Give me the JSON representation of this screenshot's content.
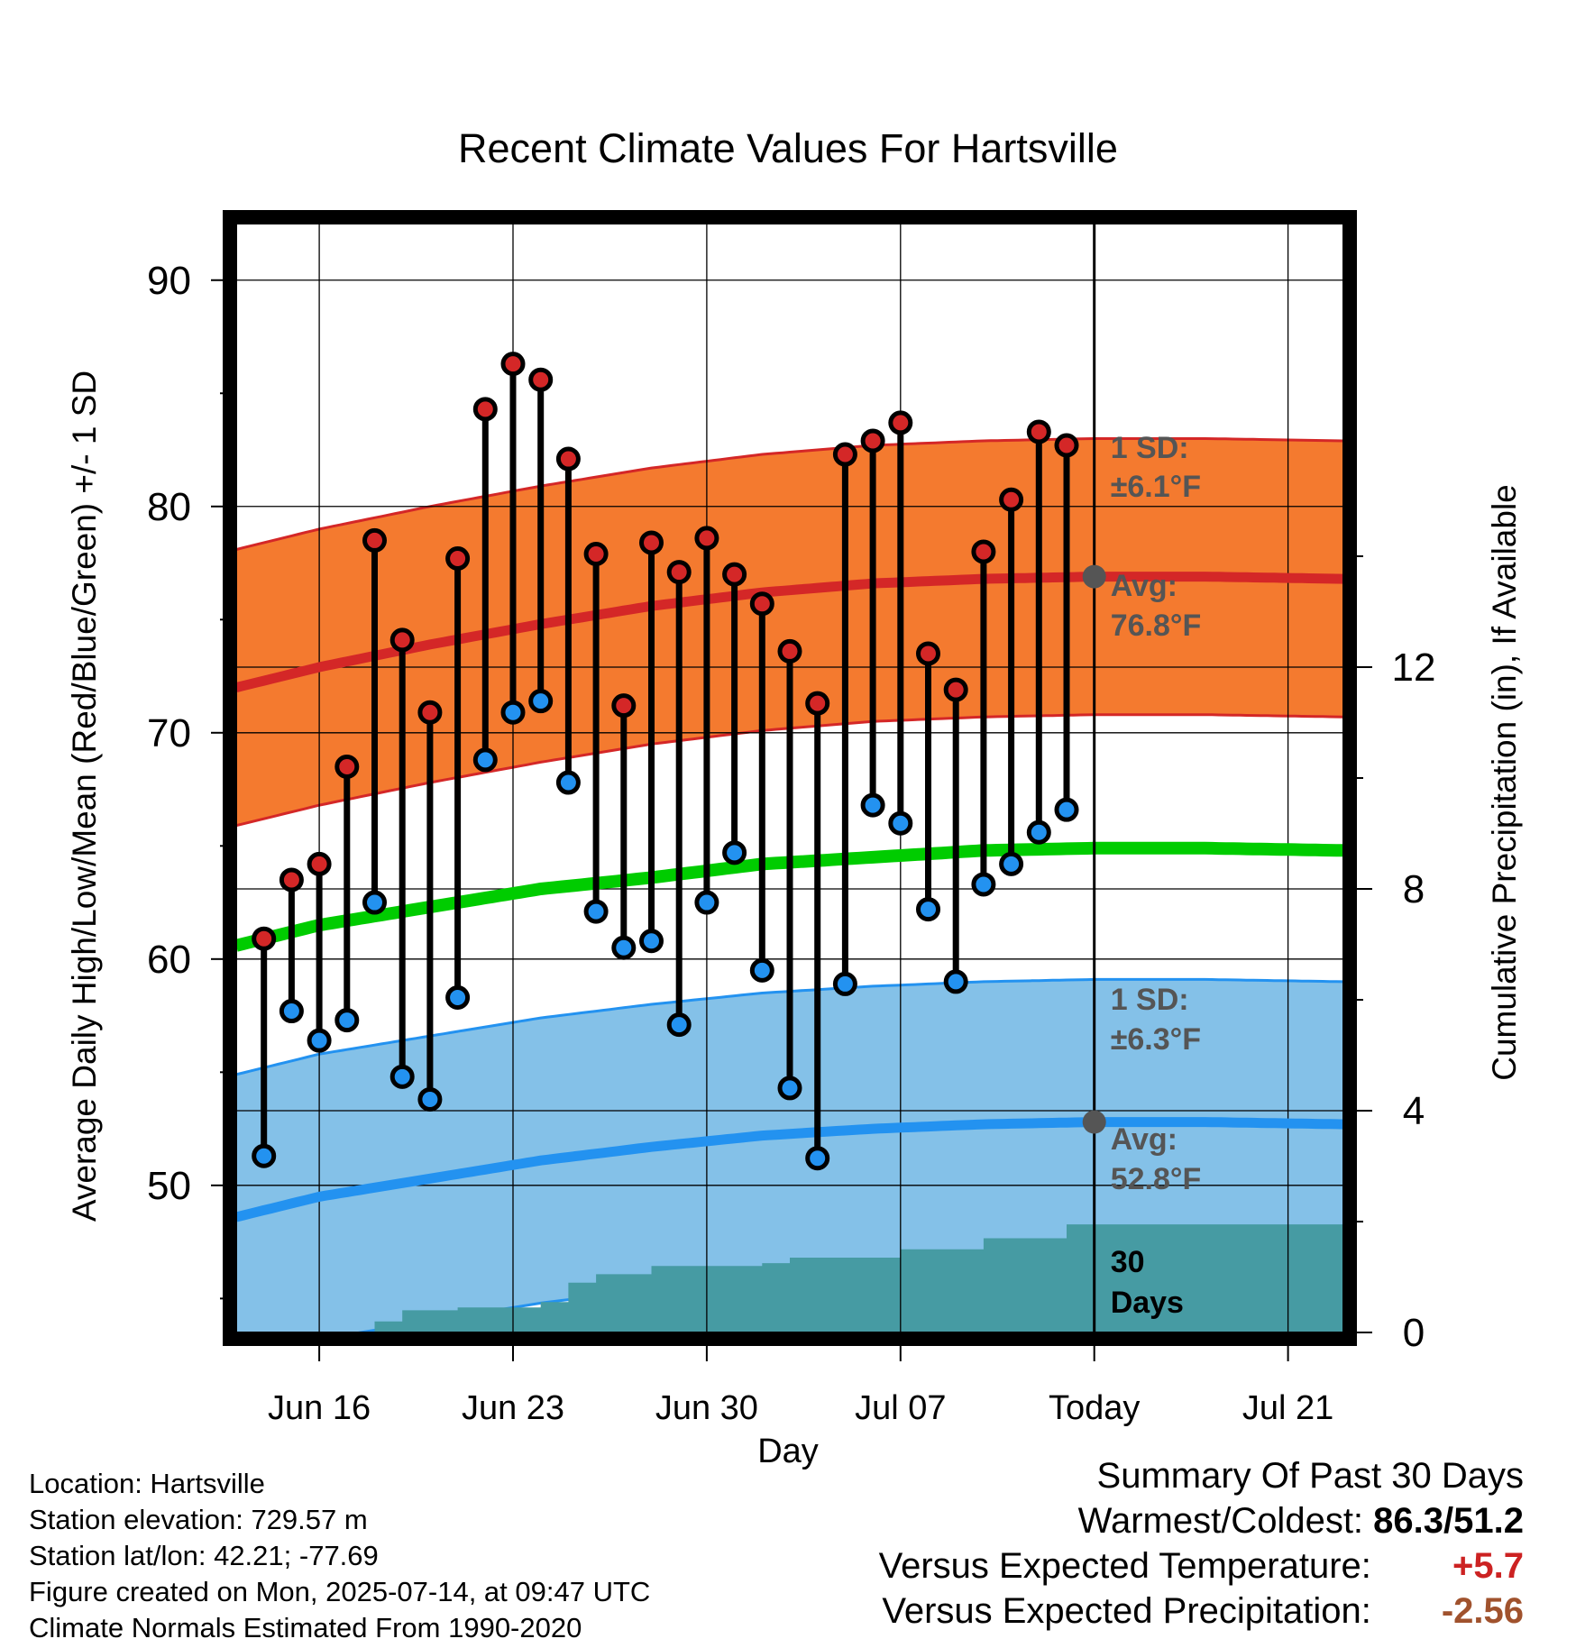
{
  "chart_data": {
    "type": "line",
    "title": "Recent Climate Values For Hartsville",
    "xlabel": "Day",
    "ylabel": "Average Daily High/Low/Mean (Red/Blue/Green) +/- 1 SD",
    "y2label": "Cumulative Precipitation (in), If Available",
    "x_ticks": [
      "Jun 16",
      "Jun 23",
      "Jun 30",
      "Jul 07",
      "Today",
      "Jul 21"
    ],
    "x_tick_dates": [
      "2025-06-16",
      "2025-06-23",
      "2025-06-30",
      "2025-07-07",
      "2025-07-14",
      "2025-07-21"
    ],
    "xlim": [
      "2025-06-13",
      "2025-07-23"
    ],
    "y_ticks": [
      50,
      60,
      70,
      80,
      90
    ],
    "ylim": [
      43.5,
      92.5
    ],
    "y2_ticks": [
      0,
      4,
      8,
      12
    ],
    "y2lim": [
      0,
      20
    ],
    "grid": true,
    "daily": {
      "dates": [
        "2025-06-14",
        "2025-06-15",
        "2025-06-16",
        "2025-06-17",
        "2025-06-18",
        "2025-06-19",
        "2025-06-20",
        "2025-06-21",
        "2025-06-22",
        "2025-06-23",
        "2025-06-24",
        "2025-06-25",
        "2025-06-26",
        "2025-06-27",
        "2025-06-28",
        "2025-06-29",
        "2025-06-30",
        "2025-07-01",
        "2025-07-02",
        "2025-07-03",
        "2025-07-04",
        "2025-07-05",
        "2025-07-06",
        "2025-07-07",
        "2025-07-08",
        "2025-07-09",
        "2025-07-10",
        "2025-07-11",
        "2025-07-12",
        "2025-07-13"
      ],
      "high": [
        60.9,
        63.5,
        64.2,
        68.5,
        78.5,
        74.1,
        70.9,
        77.7,
        84.3,
        86.3,
        85.6,
        82.1,
        77.9,
        71.2,
        78.4,
        77.1,
        78.6,
        77.0,
        75.7,
        73.6,
        71.3,
        82.3,
        82.9,
        83.7,
        73.5,
        71.9,
        78.0,
        80.3,
        83.3,
        82.7
      ],
      "low": [
        51.3,
        57.7,
        56.4,
        57.3,
        62.5,
        54.8,
        53.8,
        58.3,
        68.8,
        70.9,
        71.4,
        67.8,
        62.1,
        60.5,
        60.8,
        57.1,
        62.5,
        64.7,
        59.5,
        54.3,
        51.2,
        58.9,
        66.8,
        66.0,
        62.2,
        59.0,
        63.3,
        64.2,
        65.6,
        66.6
      ]
    },
    "normals": {
      "dates": [
        "2025-06-13",
        "2025-06-16",
        "2025-06-20",
        "2025-06-24",
        "2025-06-28",
        "2025-07-02",
        "2025-07-06",
        "2025-07-10",
        "2025-07-14",
        "2025-07-18",
        "2025-07-23"
      ],
      "high_mean": [
        72.0,
        72.9,
        73.9,
        74.8,
        75.6,
        76.2,
        76.6,
        76.8,
        76.9,
        76.9,
        76.8
      ],
      "high_sd": 6.1,
      "low_mean": [
        48.6,
        49.5,
        50.3,
        51.1,
        51.7,
        52.2,
        52.5,
        52.7,
        52.8,
        52.8,
        52.7
      ],
      "low_sd": 6.3,
      "mean": [
        60.6,
        61.5,
        62.3,
        63.1,
        63.6,
        64.2,
        64.5,
        64.8,
        64.9,
        64.9,
        64.8
      ]
    },
    "precipitation": {
      "dates": [
        "2025-06-13",
        "2025-06-16",
        "2025-06-17",
        "2025-06-18",
        "2025-06-19",
        "2025-06-20",
        "2025-06-21",
        "2025-06-22",
        "2025-06-23",
        "2025-06-24",
        "2025-06-25",
        "2025-06-26",
        "2025-06-27",
        "2025-06-28",
        "2025-06-29",
        "2025-06-30",
        "2025-07-01",
        "2025-07-02",
        "2025-07-03",
        "2025-07-04",
        "2025-07-05",
        "2025-07-06",
        "2025-07-07",
        "2025-07-08",
        "2025-07-09",
        "2025-07-10",
        "2025-07-11",
        "2025-07-12",
        "2025-07-13",
        "2025-07-23"
      ],
      "cumulative": [
        0,
        0,
        0,
        0.2,
        0.4,
        0.4,
        0.45,
        0.45,
        0.45,
        0.55,
        0.9,
        1.05,
        1.05,
        1.2,
        1.2,
        1.2,
        1.2,
        1.25,
        1.35,
        1.35,
        1.35,
        1.35,
        1.5,
        1.5,
        1.5,
        1.7,
        1.7,
        1.7,
        1.95,
        1.95
      ]
    },
    "annotations": {
      "high_sd_label": "1 SD:",
      "high_sd_value": "±6.1°F",
      "high_avg_label": "Avg:",
      "high_avg_value": "76.8°F",
      "low_sd_label": "1 SD:",
      "low_sd_value": "±6.3°F",
      "low_avg_label": "Avg:",
      "low_avg_value": "52.8°F",
      "window_label_1": "30",
      "window_label_2": "Days"
    },
    "colors": {
      "high_band": "#f47a2f",
      "high_line": "#d42727",
      "low_band": "#84c1e8",
      "low_line": "#2392f0",
      "mean_line": "#00cc00",
      "precip_fill": "#469ba3",
      "high_dot": "#d42727",
      "low_dot": "#2392f0",
      "today_dot": "#555555",
      "annotation_text": "#555555"
    }
  },
  "footer": {
    "location": "Location: Hartsville",
    "elevation": "Station elevation: 729.57 m",
    "latlon": "Station lat/lon: 42.21; -77.69",
    "created": "Figure created on Mon, 2025-07-14, at 09:47 UTC",
    "normals": "Climate Normals Estimated From 1990-2020"
  },
  "summary": {
    "title": "Summary Of Past 30 Days",
    "warm_cold_label": "Warmest/Coldest:",
    "warm_cold_value": "86.3/51.2",
    "temp_label": "Versus Expected Temperature:",
    "temp_value": "+5.7",
    "temp_color": "#cc2222",
    "precip_label": "Versus Expected Precipitation:",
    "precip_value": "-2.56",
    "precip_color": "#a0522d"
  }
}
